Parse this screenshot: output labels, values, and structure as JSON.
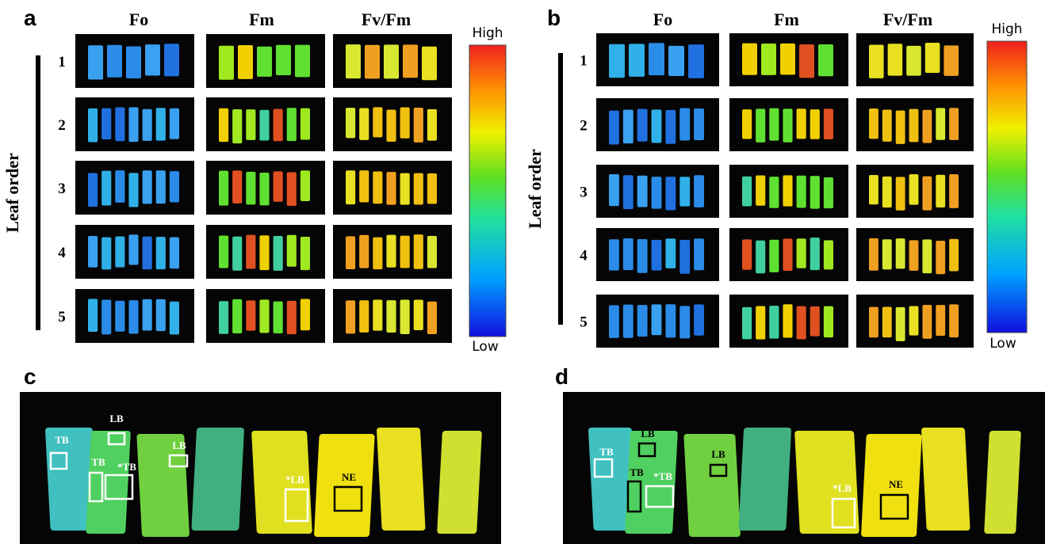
{
  "panels": [
    {
      "label": "a",
      "columns": [
        "Fo",
        "Fm",
        "Fv/Fm"
      ],
      "rows": [
        "1",
        "2",
        "3",
        "4",
        "5"
      ],
      "axis_label": "Leaf order",
      "colorbar": {
        "high": "High",
        "low": "Low"
      }
    },
    {
      "label": "b",
      "columns": [
        "Fo",
        "Fm",
        "Fv/Fm"
      ],
      "rows": [
        "1",
        "2",
        "3",
        "4",
        "5"
      ],
      "axis_label": "Leaf order",
      "colorbar": {
        "high": "High",
        "low": "Low"
      }
    },
    {
      "label": "c",
      "annotations": [
        "TB",
        "LB",
        "TB",
        "*TB",
        "LB",
        "*LB",
        "NE"
      ]
    },
    {
      "label": "d",
      "annotations": [
        "TB",
        "LB",
        "TB",
        "*TB",
        "LB",
        "*LB",
        "NE"
      ]
    }
  ]
}
